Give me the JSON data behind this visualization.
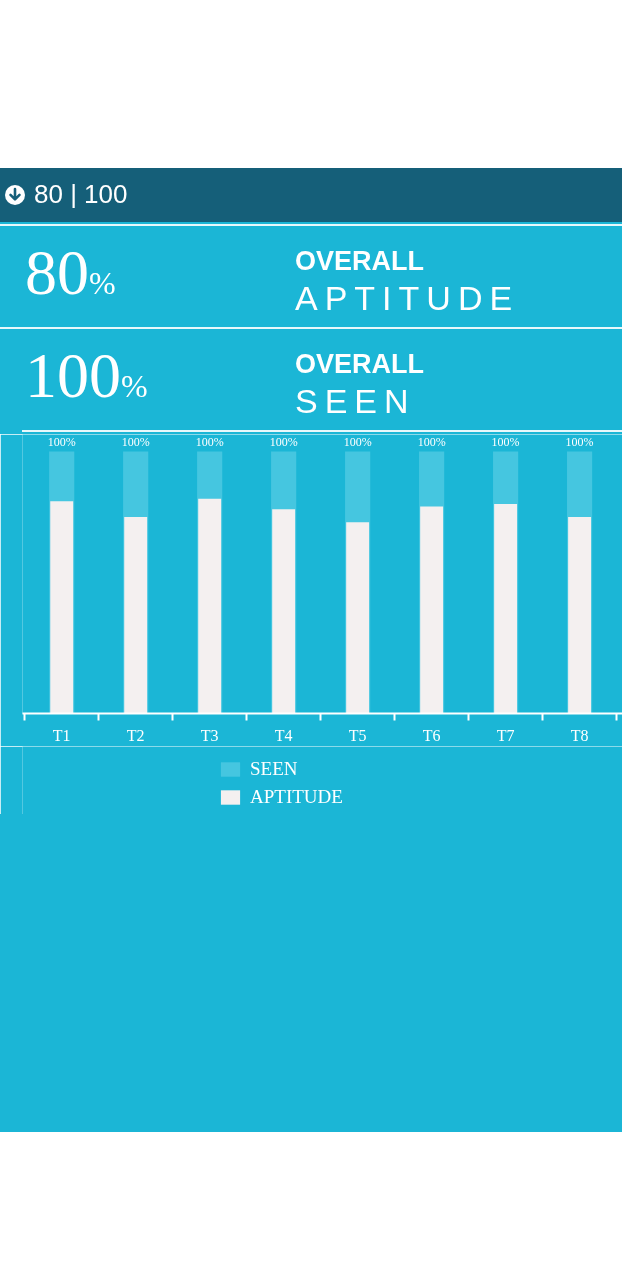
{
  "chart_data": {
    "type": "bar",
    "title": "80 | 100",
    "annotations": [
      "80%",
      "OVERALL",
      "APTITUDE",
      "100%",
      "OVERALL",
      "SEEN"
    ],
    "categories": [
      "T1",
      "T2",
      "T3",
      "T4",
      "T5",
      "T6",
      "T7",
      "T8"
    ],
    "series": [
      {
        "name": "SEEN",
        "color": "#45c6e0",
        "values": [
          100,
          100,
          100,
          100,
          100,
          100,
          100,
          100
        ],
        "value_labels": [
          "100%",
          "100%",
          "100%",
          "100%",
          "100%",
          "100%",
          "100%",
          "100%"
        ]
      },
      {
        "name": "APTITUDE",
        "color": "#f4f0f0",
        "values": [
          81,
          75,
          82,
          78,
          73,
          79,
          80,
          75
        ]
      }
    ],
    "legend": "bottom",
    "grid": false
  }
}
